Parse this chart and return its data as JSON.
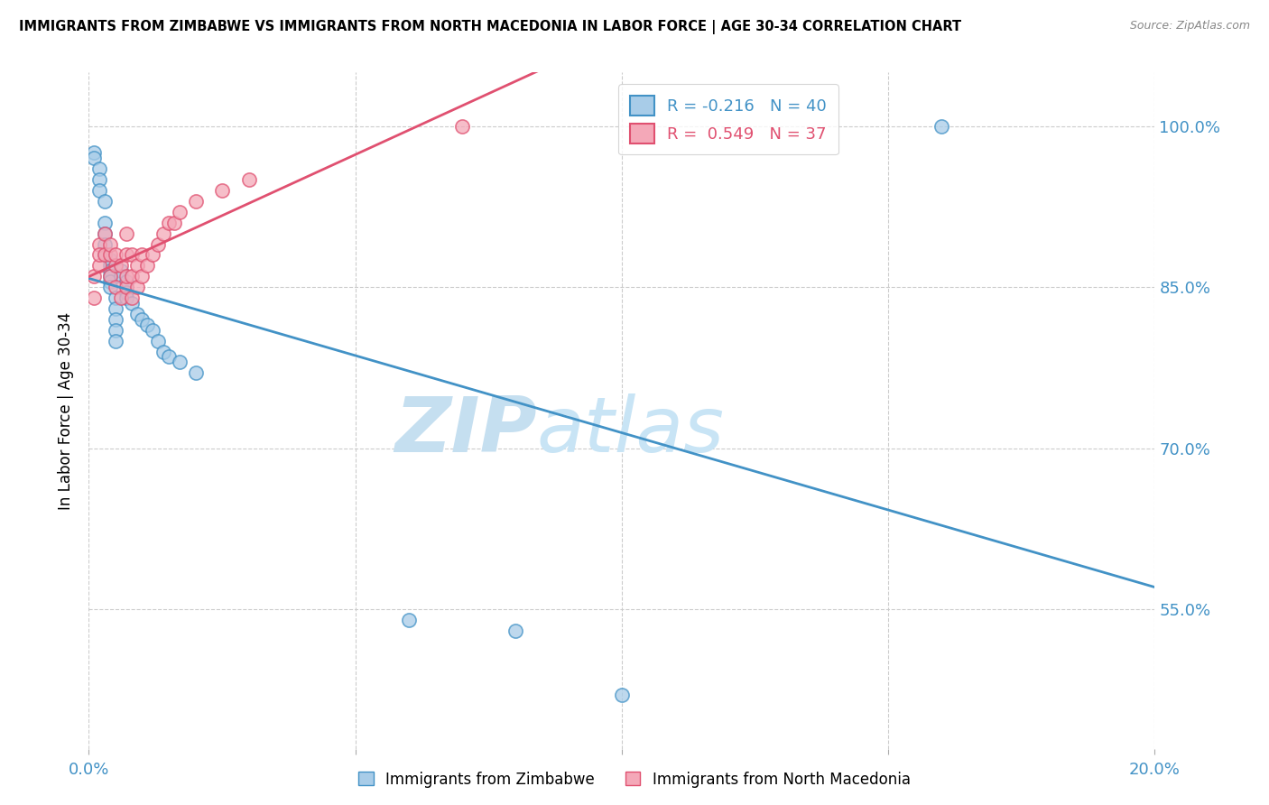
{
  "title": "IMMIGRANTS FROM ZIMBABWE VS IMMIGRANTS FROM NORTH MACEDONIA IN LABOR FORCE | AGE 30-34 CORRELATION CHART",
  "source": "Source: ZipAtlas.com",
  "ylabel": "In Labor Force | Age 30-34",
  "xlim": [
    0.0,
    0.2
  ],
  "ylim": [
    0.42,
    1.05
  ],
  "r_zimbabwe": -0.216,
  "n_zimbabwe": 40,
  "r_macedonia": 0.549,
  "n_macedonia": 37,
  "color_zimbabwe": "#a8cce8",
  "color_macedonia": "#f4a8b8",
  "trendline_zimbabwe_color": "#4292c6",
  "trendline_macedonia_color": "#e05070",
  "watermark_zip": "ZIP",
  "watermark_atlas": "atlas",
  "zimbabwe_x": [
    0.001,
    0.001,
    0.002,
    0.002,
    0.002,
    0.003,
    0.003,
    0.003,
    0.003,
    0.003,
    0.004,
    0.004,
    0.004,
    0.004,
    0.004,
    0.004,
    0.005,
    0.005,
    0.005,
    0.005,
    0.005,
    0.006,
    0.006,
    0.007,
    0.007,
    0.007,
    0.008,
    0.009,
    0.01,
    0.011,
    0.012,
    0.013,
    0.014,
    0.015,
    0.017,
    0.02,
    0.06,
    0.08,
    0.1,
    0.16
  ],
  "zimbabwe_y": [
    0.975,
    0.97,
    0.96,
    0.95,
    0.94,
    0.93,
    0.91,
    0.9,
    0.89,
    0.88,
    0.875,
    0.87,
    0.865,
    0.86,
    0.855,
    0.85,
    0.84,
    0.83,
    0.82,
    0.81,
    0.8,
    0.865,
    0.86,
    0.855,
    0.845,
    0.84,
    0.835,
    0.825,
    0.82,
    0.815,
    0.81,
    0.8,
    0.79,
    0.785,
    0.78,
    0.77,
    0.54,
    0.53,
    0.47,
    1.0
  ],
  "macedonia_x": [
    0.001,
    0.001,
    0.002,
    0.002,
    0.002,
    0.003,
    0.003,
    0.004,
    0.004,
    0.004,
    0.005,
    0.005,
    0.005,
    0.006,
    0.006,
    0.007,
    0.007,
    0.007,
    0.007,
    0.008,
    0.008,
    0.008,
    0.009,
    0.009,
    0.01,
    0.01,
    0.011,
    0.012,
    0.013,
    0.014,
    0.015,
    0.016,
    0.017,
    0.02,
    0.025,
    0.03,
    0.07
  ],
  "macedonia_y": [
    0.84,
    0.86,
    0.87,
    0.89,
    0.88,
    0.88,
    0.9,
    0.86,
    0.88,
    0.89,
    0.85,
    0.87,
    0.88,
    0.84,
    0.87,
    0.85,
    0.86,
    0.88,
    0.9,
    0.84,
    0.86,
    0.88,
    0.85,
    0.87,
    0.86,
    0.88,
    0.87,
    0.88,
    0.89,
    0.9,
    0.91,
    0.91,
    0.92,
    0.93,
    0.94,
    0.95,
    1.0
  ],
  "ytick_vals": [
    0.55,
    0.7,
    0.85,
    1.0
  ],
  "ytick_labels": [
    "55.0%",
    "70.0%",
    "85.0%",
    "100.0%"
  ],
  "xtick_label_left": "0.0%",
  "xtick_label_right": "20.0%"
}
